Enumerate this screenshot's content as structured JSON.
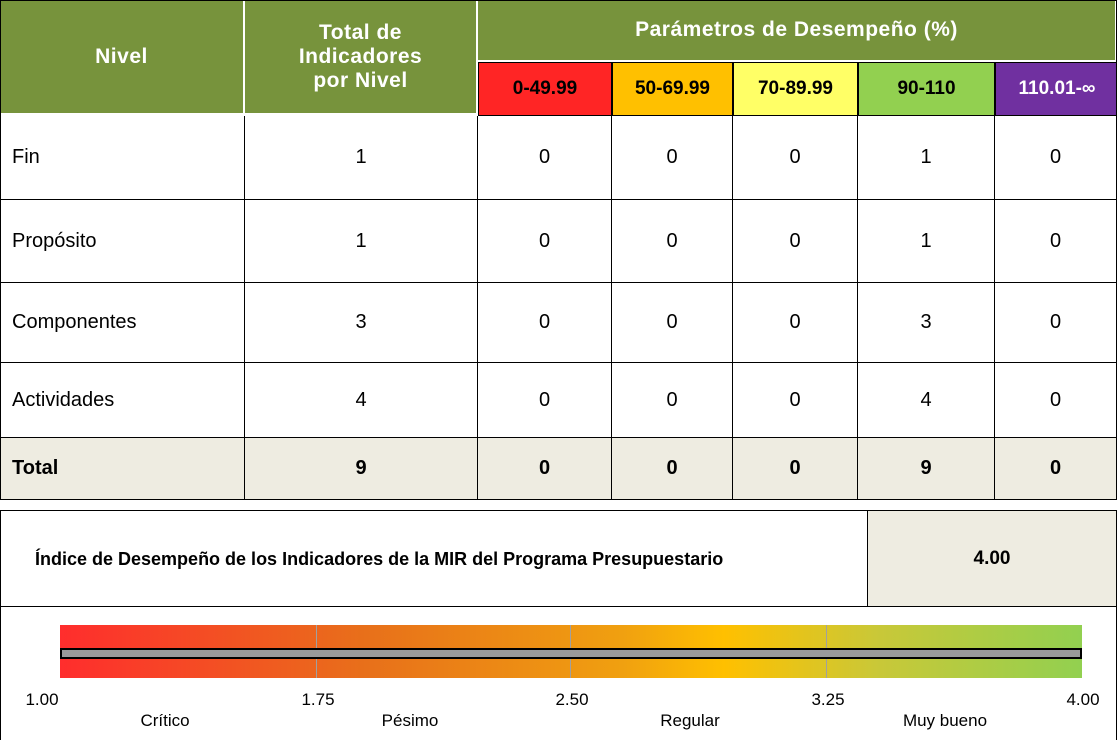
{
  "header": {
    "nivel": "Nivel",
    "total": "Total de Indicadores por Nivel",
    "parametros": "Parámetros de Desempeño (%)",
    "ranges": [
      "0-49.99",
      "50-69.99",
      "70-89.99",
      "90-110",
      "110.01-∞"
    ]
  },
  "table": {
    "rows": [
      [
        "Fin",
        "1",
        "0",
        "0",
        "0",
        "1",
        "0"
      ],
      [
        "Propósito",
        "1",
        "0",
        "0",
        "0",
        "1",
        "0"
      ],
      [
        "Componentes",
        "3",
        "0",
        "0",
        "0",
        "3",
        "0"
      ],
      [
        "Actividades",
        "4",
        "0",
        "0",
        "0",
        "4",
        "0"
      ]
    ],
    "total": [
      "Total",
      "9",
      "0",
      "0",
      "0",
      "9",
      "0"
    ]
  },
  "index": {
    "label": "Índice de Desempeño de los Indicadores de la MIR del Programa Presupuestario",
    "value": "4.00"
  },
  "scale": {
    "ticks": [
      "1.00",
      "1.75",
      "2.50",
      "3.25",
      "4.00"
    ],
    "categories": [
      "Crítico",
      "Pésimo",
      "Regular",
      "Muy bueno"
    ]
  }
}
